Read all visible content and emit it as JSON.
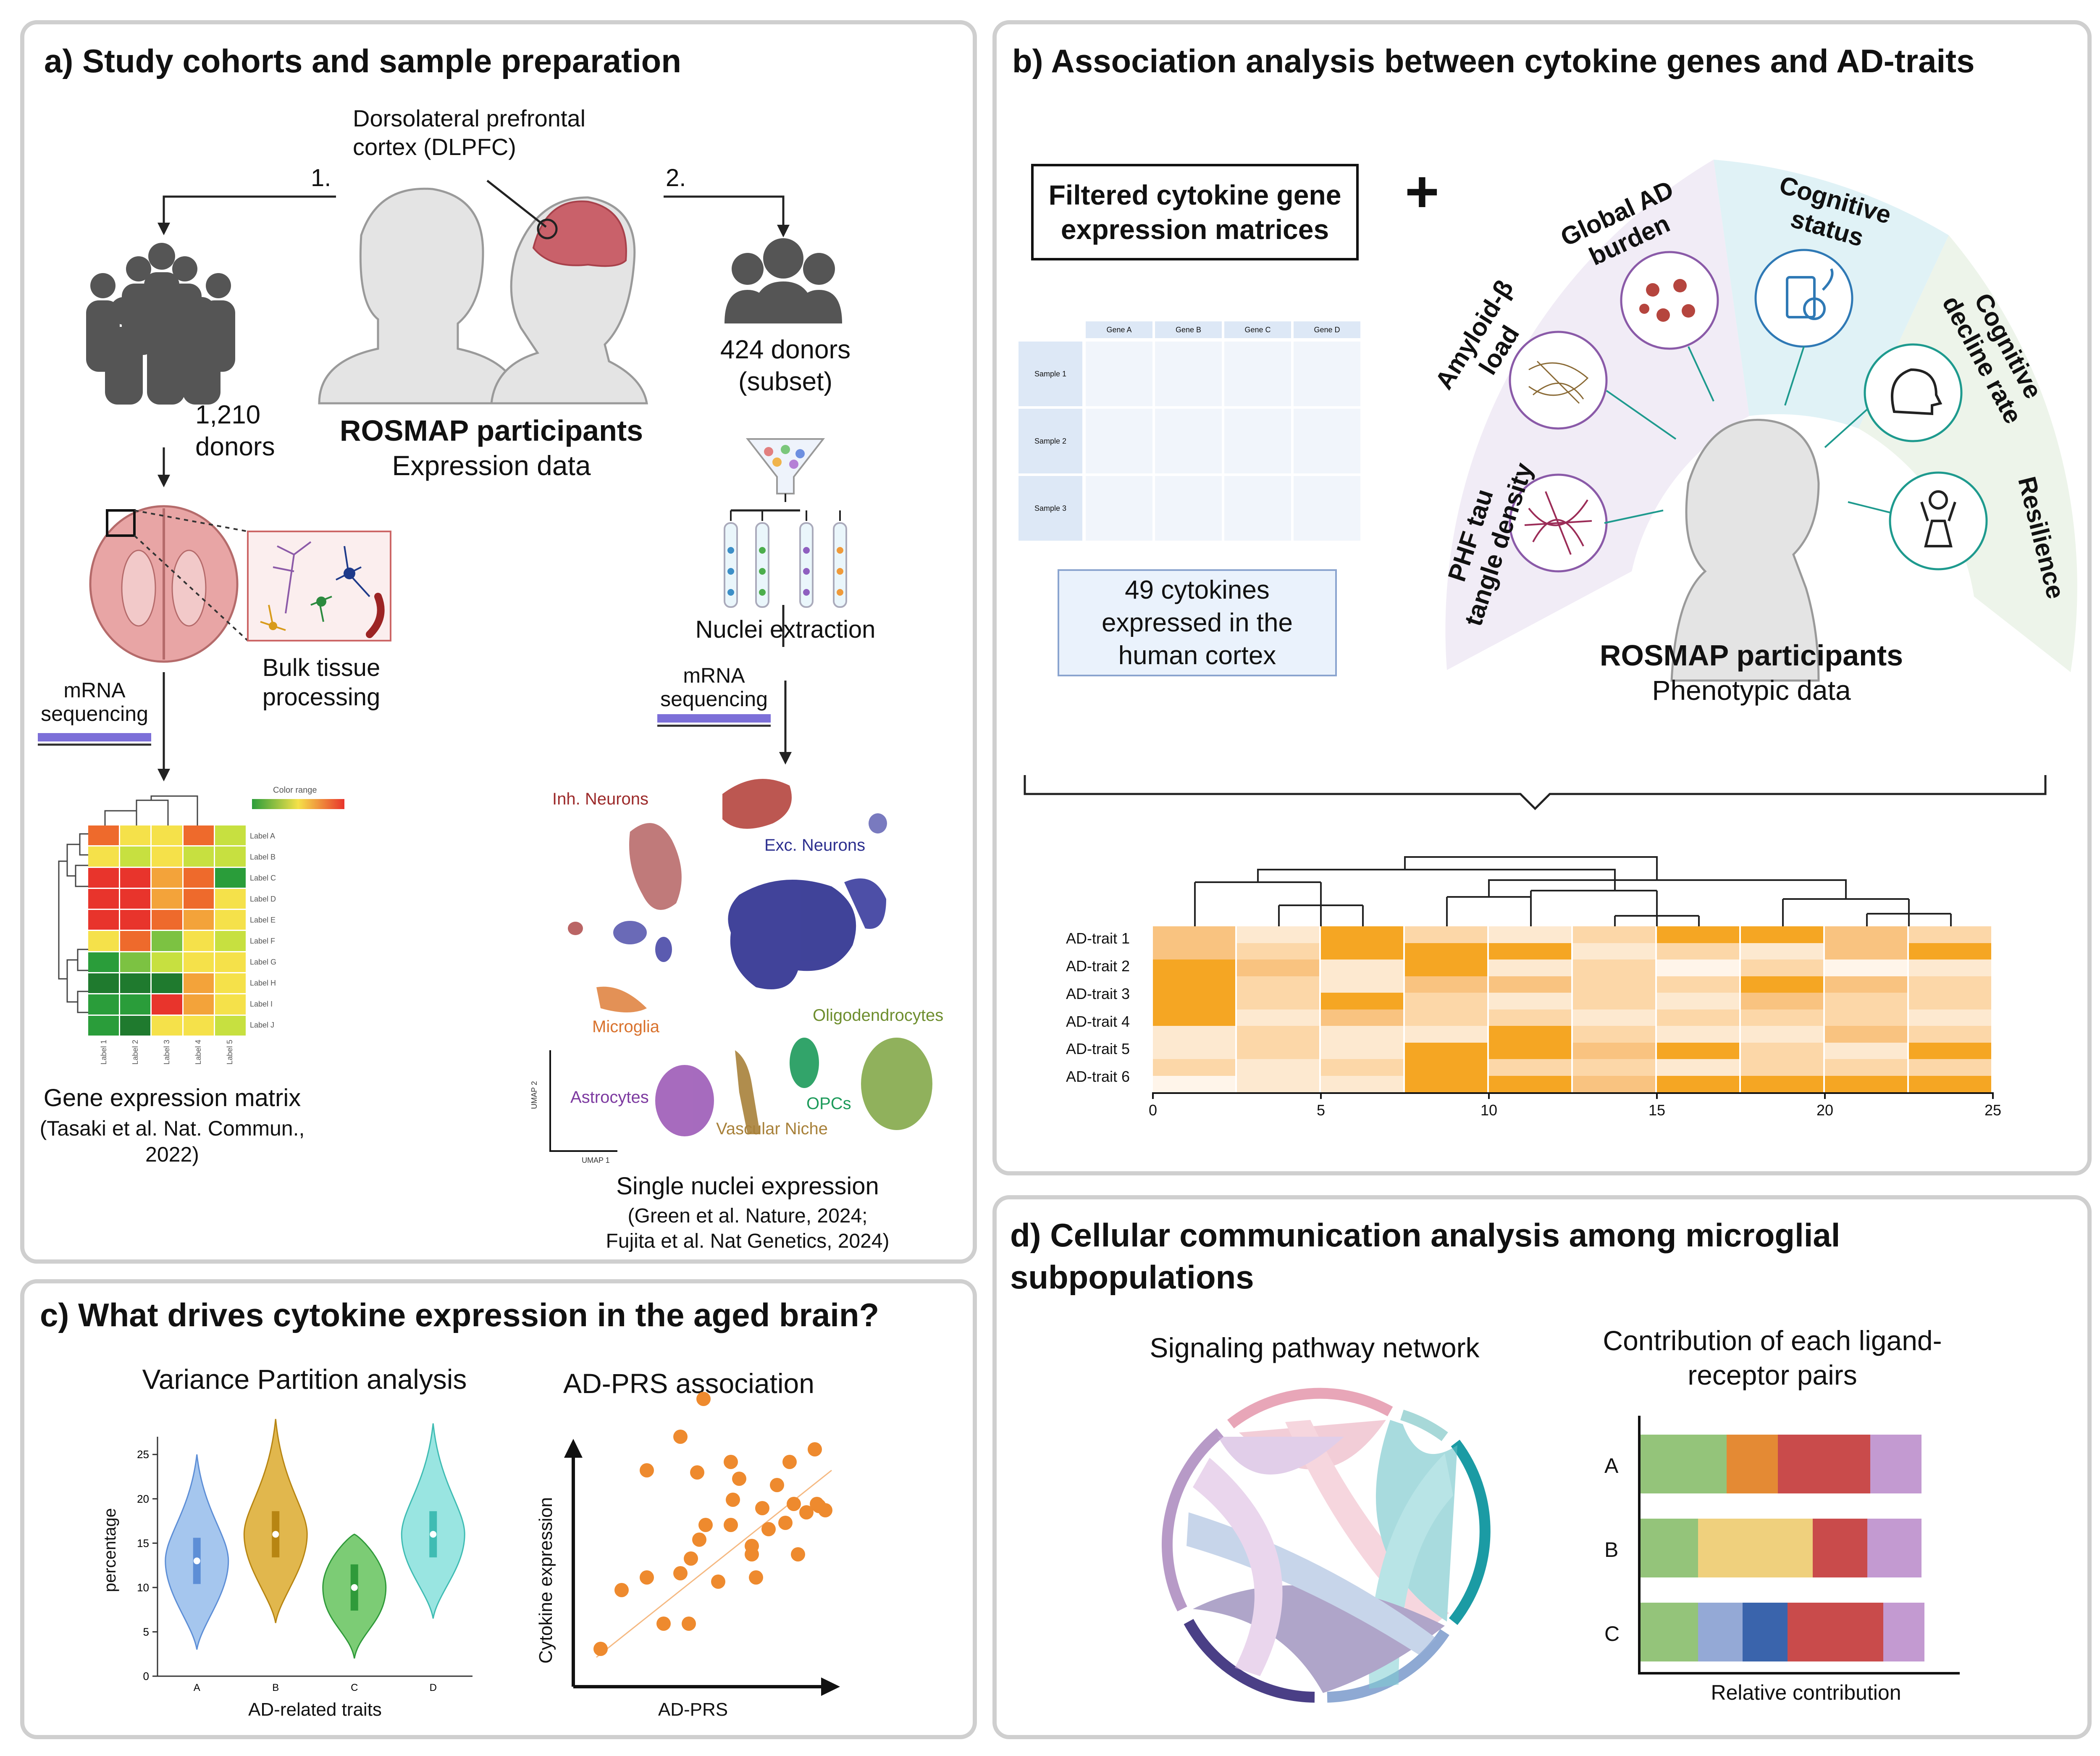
{
  "panel_a": {
    "title": "a) Study cohorts and sample preparation",
    "dlpfc": "Dorsolateral prefrontal\ncortex (DLPFC)",
    "step1": "1.",
    "step2": "2.",
    "donors_left": "1,210\ndonors",
    "donors_right": "424 donors\n(subset)",
    "participants_title": "ROSMAP participants",
    "participants_sub": "Expression data",
    "bulk": "Bulk tissue\nprocessing",
    "mrna_left": "mRNA\nsequencing",
    "mrna_right": "mRNA\nsequencing",
    "nuclei": "Nuclei extraction",
    "heatmap_color_range": "Color range",
    "heatmap_row_labels": [
      "Label A",
      "Label B",
      "Label C",
      "Label D",
      "Label E",
      "Label F",
      "Label G",
      "Label H",
      "Label I",
      "Label J"
    ],
    "heatmap_col_labels": [
      "Label 1",
      "Label 2",
      "Label 3",
      "Label 4",
      "Label 5"
    ],
    "gene_matrix": "Gene expression matrix",
    "gene_matrix_ref": "(Tasaki et al. Nat. Commun.,\n2022)",
    "umap_labels": {
      "inh": "Inh. Neurons",
      "exc": "Exc. Neurons",
      "micro": "Microglia",
      "oligo": "Oligodendrocytes",
      "astro": "Astrocytes",
      "opc": "OPCs",
      "vasc": "Vascular Niche",
      "umap1": "UMAP 1",
      "umap2": "UMAP 2"
    },
    "single_nuclei": "Single nuclei expression",
    "single_nuclei_ref": "(Green et al. Nature, 2024;\nFujita et al. Nat Genetics, 2024)"
  },
  "panel_b": {
    "title": "b) Association analysis between cytokine genes and AD-traits",
    "filtered": "Filtered cytokine gene\nexpression matrices",
    "plus": "+",
    "gene_cols": [
      "Gene A",
      "Gene B",
      "Gene C",
      "Gene D"
    ],
    "sample_rows": [
      "Sample 1",
      "Sample 2",
      "Sample 3"
    ],
    "cytokines": "49 cytokines\nexpressed in the\nhuman cortex",
    "traits": {
      "phf": "PHF tau\ntangle density",
      "amyloid": "Amyloid-β\nload",
      "global": "Global AD\nburden",
      "cognitive": "Cognitive\nstatus",
      "decline": "Cognitive\ndecline rate",
      "resilience": "Resilience"
    },
    "participants_title": "ROSMAP participants",
    "participants_sub": "Phenotypic data",
    "heatmap_rows": [
      "AD-trait 1",
      "AD-trait 2",
      "AD-trait 3",
      "AD-trait 4",
      "AD-trait 5",
      "AD-trait 6"
    ],
    "heatmap_x_ticks": [
      "0",
      "5",
      "10",
      "15",
      "20",
      "25"
    ]
  },
  "panel_c": {
    "title": "c) What drives cytokine expression in the aged brain?",
    "violin_title": "Variance Partition analysis",
    "violin_ylabel": "percentage",
    "violin_xlabel": "AD-related traits",
    "prs_title": "AD-PRS association",
    "prs_ylabel": "Cytokine expression",
    "prs_xlabel": "AD-PRS",
    "colors": {
      "A": "#8fb8ea",
      "B": "#d9a520",
      "C": "#5bbf52",
      "D": "#7fded9",
      "scatter": "#ee8a2e"
    }
  },
  "panel_d": {
    "title": "d) Cellular communication analysis among microglial\nsubpopulations",
    "network_title": "Signaling pathway network",
    "contrib_title": "Contribution of each ligand-\nreceptor pairs",
    "contrib_xlabel": "Relative contribution",
    "bar_rows": [
      "A",
      "B",
      "C"
    ]
  },
  "chart_data": [
    {
      "type": "heatmap",
      "title": "",
      "rows": [
        "AD-trait 1",
        "AD-trait 2",
        "AD-trait 3",
        "AD-trait 4",
        "AD-trait 5",
        "AD-trait 6"
      ],
      "xlim": [
        0,
        25
      ],
      "x_ticks": [
        0,
        5,
        10,
        15,
        20,
        25
      ],
      "grid": false
    },
    {
      "type": "violin",
      "title": "Variance Partition analysis",
      "xlabel": "AD-related traits",
      "ylabel": "percentage",
      "categories": [
        "A",
        "B",
        "C",
        "D"
      ],
      "medians": [
        13,
        16,
        10,
        16
      ],
      "ranges": [
        [
          3,
          25
        ],
        [
          6,
          29
        ],
        [
          2,
          16
        ],
        [
          6.5,
          28.5
        ]
      ],
      "ylim": [
        0,
        27
      ],
      "y_ticks": [
        0,
        5,
        10,
        15,
        20,
        25
      ]
    },
    {
      "type": "scatter",
      "title": "AD-PRS association",
      "xlabel": "AD-PRS",
      "ylabel": "Cytokine expression",
      "trend": "positive"
    },
    {
      "type": "bar",
      "orientation": "horizontal-stacked",
      "title": "Contribution of each ligand-\nreceptor pairs",
      "xlabel": "Relative contribution",
      "categories": [
        "A",
        "B",
        "C"
      ],
      "stacks": [
        [
          0.27,
          0.16,
          0.29,
          0.16
        ],
        [
          0.18,
          0.36,
          0.17,
          0.17
        ],
        [
          0.18,
          0.14,
          0.14,
          0.3,
          0.13
        ]
      ]
    }
  ]
}
